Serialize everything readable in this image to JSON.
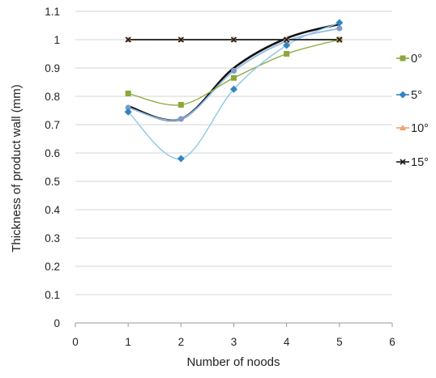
{
  "chart_data": {
    "type": "line",
    "title": "",
    "xlabel": "Number of noods",
    "ylabel": "Thickness of product wall (mm)",
    "xlim": [
      0,
      6
    ],
    "ylim": [
      0,
      1.1
    ],
    "x_ticks": [
      "0",
      "1",
      "2",
      "3",
      "4",
      "5",
      "6"
    ],
    "y_ticks": [
      "0",
      "0.1",
      "0.2",
      "0.3",
      "0.4",
      "0.5",
      "0.6",
      "0.7",
      "0.8",
      "0.9",
      "1",
      "1.1"
    ],
    "grid": "horizontal",
    "legend_position": "right",
    "x": [
      1,
      2,
      3,
      4,
      5
    ],
    "series": [
      {
        "name": "0°",
        "values": [
          0.81,
          0.77,
          0.865,
          0.95,
          1.0
        ],
        "color": "#8aa83a",
        "marker": "square"
      },
      {
        "name": "5°",
        "values": [
          0.745,
          0.58,
          0.825,
          0.98,
          1.06
        ],
        "color": "#2e86c1",
        "marker": "diamond"
      },
      {
        "name": "10°",
        "values": [
          1.0,
          1.0,
          1.0,
          1.0,
          1.0
        ],
        "color": "#f0a070",
        "marker": "triangle"
      },
      {
        "name": "15°",
        "values": [
          1.0,
          1.0,
          1.0,
          1.0,
          1.0
        ],
        "color": "#1a1a1a",
        "marker": "cross"
      }
    ],
    "trend_lines": [
      {
        "values": [
          0.765,
          0.72,
          0.9,
          1.005,
          1.055
        ],
        "color": "#111111"
      },
      {
        "values": [
          0.76,
          0.72,
          0.89,
          0.995,
          1.04
        ],
        "color": "#8fbce6",
        "marker": "circle",
        "marker_color": "#7f9bc8"
      }
    ]
  }
}
